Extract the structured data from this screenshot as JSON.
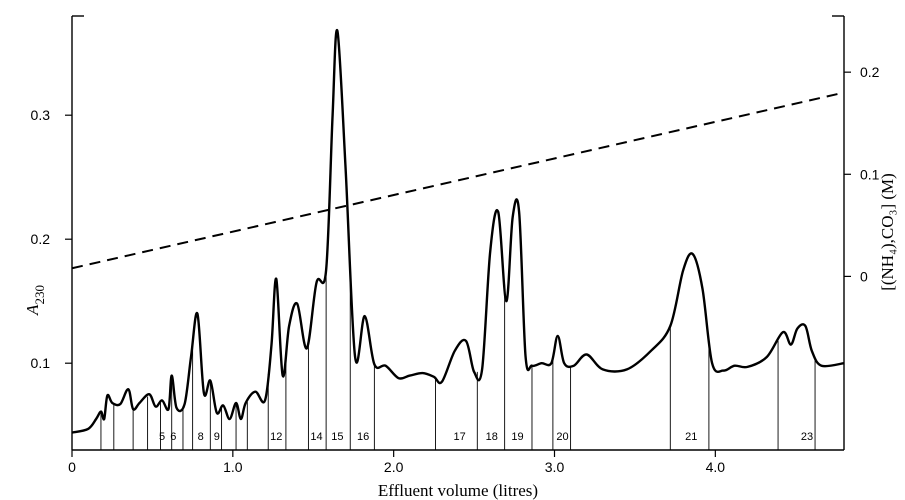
{
  "chart_data": {
    "type": "line",
    "xlabel": "Effluent volume (litres)",
    "ylabel": "A",
    "ylabel_sub": "230",
    "y2label": "[(NH₄),CO₃] (M)",
    "xlim": [
      0,
      4.8
    ],
    "ylim": [
      0.03,
      0.38
    ],
    "y2lim": [
      -0.17,
      0.255
    ],
    "x_ticks": [
      0,
      1.0,
      2.0,
      3.0,
      4.0
    ],
    "x_tick_labels": [
      "0",
      "1.0",
      "2.0",
      "3.0",
      "4.0"
    ],
    "y_ticks": [
      0.1,
      0.2,
      0.3
    ],
    "y_tick_labels": [
      "0.1",
      "0.2",
      "0.3"
    ],
    "y2_ticks": [
      0,
      0.1,
      0.2
    ],
    "y2_tick_labels": [
      "0",
      "0.1",
      "0.2"
    ],
    "series": [
      {
        "kind": "absorbance",
        "x": [
          0,
          0.1,
          0.15,
          0.18,
          0.2,
          0.22,
          0.25,
          0.3,
          0.35,
          0.38,
          0.42,
          0.48,
          0.52,
          0.56,
          0.6,
          0.62,
          0.65,
          0.7,
          0.74,
          0.78,
          0.82,
          0.86,
          0.9,
          0.94,
          0.98,
          1.02,
          1.05,
          1.08,
          1.14,
          1.2,
          1.24,
          1.27,
          1.31,
          1.35,
          1.4,
          1.46,
          1.52,
          1.58,
          1.62,
          1.65,
          1.7,
          1.76,
          1.82,
          1.88,
          1.95,
          2.03,
          2.1,
          2.18,
          2.25,
          2.3,
          2.38,
          2.45,
          2.5,
          2.55,
          2.6,
          2.65,
          2.7,
          2.74,
          2.78,
          2.82,
          2.86,
          2.92,
          2.98,
          3.02,
          3.06,
          3.12,
          3.2,
          3.3,
          3.45,
          3.6,
          3.72,
          3.8,
          3.86,
          3.92,
          3.98,
          4.05,
          4.12,
          4.2,
          4.32,
          4.42,
          4.47,
          4.51,
          4.56,
          4.6,
          4.66,
          4.8
        ],
        "y": [
          0.044,
          0.047,
          0.055,
          0.061,
          0.055,
          0.074,
          0.068,
          0.067,
          0.079,
          0.063,
          0.068,
          0.075,
          0.065,
          0.07,
          0.063,
          0.09,
          0.064,
          0.067,
          0.105,
          0.14,
          0.076,
          0.086,
          0.06,
          0.066,
          0.055,
          0.068,
          0.055,
          0.068,
          0.077,
          0.07,
          0.114,
          0.168,
          0.09,
          0.13,
          0.148,
          0.112,
          0.165,
          0.175,
          0.3,
          0.368,
          0.26,
          0.105,
          0.138,
          0.099,
          0.098,
          0.088,
          0.09,
          0.092,
          0.089,
          0.085,
          0.11,
          0.118,
          0.093,
          0.095,
          0.19,
          0.222,
          0.15,
          0.218,
          0.222,
          0.106,
          0.098,
          0.1,
          0.1,
          0.122,
          0.1,
          0.098,
          0.107,
          0.095,
          0.095,
          0.11,
          0.13,
          0.175,
          0.188,
          0.16,
          0.1,
          0.094,
          0.098,
          0.097,
          0.105,
          0.125,
          0.115,
          0.128,
          0.13,
          0.11,
          0.098,
          0.1
        ]
      },
      {
        "kind": "gradient",
        "x": [
          0,
          4.8
        ],
        "y2": [
          0.008,
          0.18
        ]
      }
    ],
    "fraction_boundaries": [
      0.18,
      0.26,
      0.38,
      0.47,
      0.55,
      0.62,
      0.69,
      0.75,
      0.86,
      0.93,
      1.02,
      1.09,
      1.22,
      1.33,
      1.47,
      1.58,
      1.73,
      1.88,
      2.26,
      2.52,
      2.69,
      2.86,
      2.99,
      3.1,
      3.72,
      3.96,
      4.39,
      4.62
    ],
    "fraction_labels": [
      {
        "label": "5",
        "x": 0.56
      },
      {
        "label": "6",
        "x": 0.63
      },
      {
        "label": "8",
        "x": 0.8
      },
      {
        "label": "9",
        "x": 0.9
      },
      {
        "label": "12",
        "x": 1.27
      },
      {
        "label": "14",
        "x": 1.52
      },
      {
        "label": "15",
        "x": 1.65
      },
      {
        "label": "16",
        "x": 1.81
      },
      {
        "label": "17",
        "x": 2.41
      },
      {
        "label": "18",
        "x": 2.61
      },
      {
        "label": "19",
        "x": 2.77
      },
      {
        "label": "20",
        "x": 3.05
      },
      {
        "label": "21",
        "x": 3.85
      },
      {
        "label": "23",
        "x": 4.57
      }
    ]
  }
}
